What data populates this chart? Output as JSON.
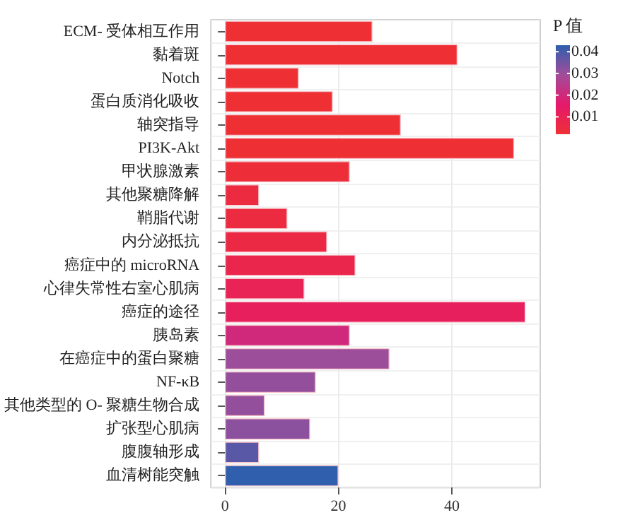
{
  "chart_data": {
    "type": "bar",
    "orientation": "horizontal",
    "clabel": "P 值",
    "categories": [
      "ECM- 受体相互作用",
      "黏着斑",
      "Notch",
      "蛋白质消化吸收",
      "轴突指导",
      "PI3K-Akt",
      "甲状腺激素",
      "其他聚糖降解",
      "鞘脂代谢",
      "内分泌抵抗",
      "癌症中的 microRNA",
      "心律失常性右室心肌病",
      "癌症的途径",
      "胰岛素",
      "在癌症中的蛋白聚糖",
      "NF-κB",
      "其他类型的 O- 聚糖生物合成",
      "扩张型心肌病",
      "腹腹轴形成",
      "血清树能突触"
    ],
    "values": [
      26,
      41,
      13,
      19,
      31,
      51,
      22,
      6,
      11,
      18,
      23,
      14,
      53,
      22,
      29,
      16,
      7,
      15,
      6,
      20
    ],
    "cvalues": [
      0.002,
      0.002,
      0.002,
      0.002,
      0.002,
      0.002,
      0.003,
      0.005,
      0.005,
      0.006,
      0.008,
      0.01,
      0.012,
      0.02,
      0.03,
      0.031,
      0.031,
      0.032,
      0.038,
      0.043
    ],
    "clim": [
      0.002,
      0.043
    ],
    "cticks": [
      0.01,
      0.02,
      0.03,
      0.04
    ],
    "xlim": [
      -2.5,
      55.6
    ],
    "xticks": [
      0,
      20,
      40
    ],
    "grid": true
  }
}
